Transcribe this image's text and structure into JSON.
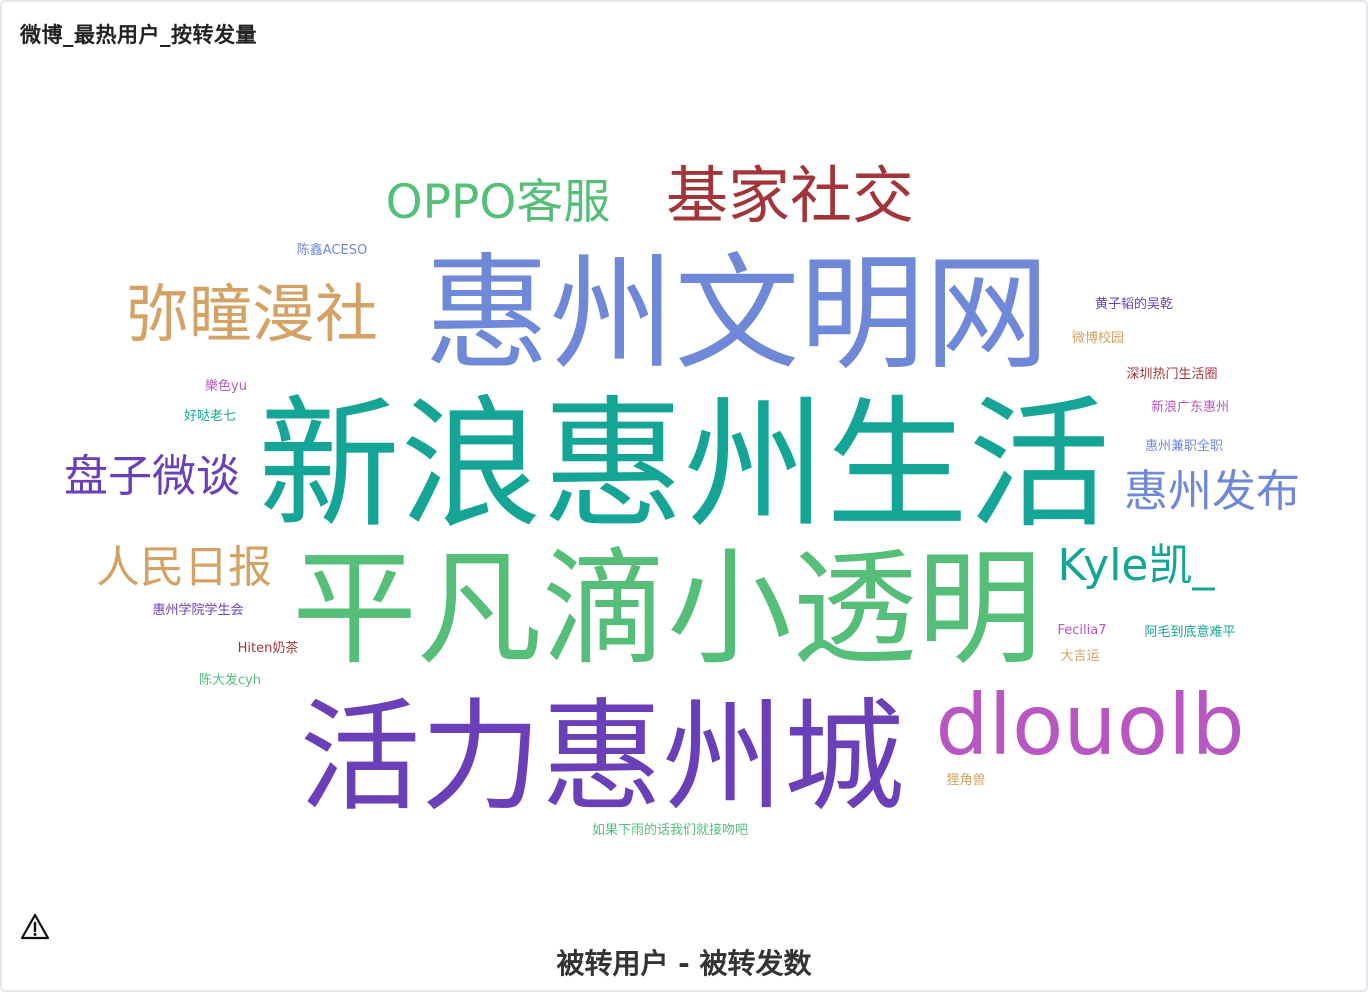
{
  "chart_data": {
    "type": "wordcloud",
    "title": "微博_最热用户_按转发量",
    "xlabel": "被转用户 - 被转发数",
    "words": [
      {
        "text": "新浪惠州生活",
        "weight": 100,
        "color": "#14a596"
      },
      {
        "text": "惠州文明网",
        "weight": 88,
        "color": "#6f88d8"
      },
      {
        "text": "平凡滴小透明",
        "weight": 88,
        "color": "#55bf7a"
      },
      {
        "text": "活力惠州城",
        "weight": 85,
        "color": "#6a3fb8"
      },
      {
        "text": "dlouolb",
        "weight": 62,
        "color": "#b857c1"
      },
      {
        "text": "弥瞳漫社",
        "weight": 46,
        "color": "#d3a264"
      },
      {
        "text": "基家社交",
        "weight": 45,
        "color": "#a3353a"
      },
      {
        "text": "OPPO客服",
        "weight": 34,
        "color": "#55bf7a"
      },
      {
        "text": "盘子微谈",
        "weight": 32,
        "color": "#6a3fb8"
      },
      {
        "text": "惠州发布",
        "weight": 32,
        "color": "#6f88d8"
      },
      {
        "text": "人民日报",
        "weight": 32,
        "color": "#d3a264"
      },
      {
        "text": "Kyle凯_",
        "weight": 32,
        "color": "#14a596"
      },
      {
        "text": "陈鑫ACESO",
        "weight": 10,
        "color": "#6f88d8"
      },
      {
        "text": "黄子韬的吴乾",
        "weight": 10,
        "color": "#6a3fb8"
      },
      {
        "text": "微博校园",
        "weight": 10,
        "color": "#d3a264"
      },
      {
        "text": "樂色yu",
        "weight": 10,
        "color": "#b857c1"
      },
      {
        "text": "好哒老七",
        "weight": 10,
        "color": "#14a596"
      },
      {
        "text": "深圳热门生活圈",
        "weight": 10,
        "color": "#a3353a"
      },
      {
        "text": "新浪广东惠州",
        "weight": 10,
        "color": "#b857c1"
      },
      {
        "text": "惠州兼职全职",
        "weight": 10,
        "color": "#6f88d8"
      },
      {
        "text": "惠州学院学生会",
        "weight": 10,
        "color": "#6a3fb8"
      },
      {
        "text": "Hiten奶茶",
        "weight": 10,
        "color": "#a3353a"
      },
      {
        "text": "陈大发cyh",
        "weight": 10,
        "color": "#55bf7a"
      },
      {
        "text": "Fecilia7",
        "weight": 10,
        "color": "#b857c1"
      },
      {
        "text": "阿毛到底意难平",
        "weight": 10,
        "color": "#14a596"
      },
      {
        "text": "大吉运",
        "weight": 10,
        "color": "#d3a264"
      },
      {
        "text": "狸角兽",
        "weight": 10,
        "color": "#d3a264"
      },
      {
        "text": "如果下雨的话我们就接吻吧",
        "weight": 10,
        "color": "#55bf7a"
      }
    ]
  },
  "warning_icon": "warning-triangle-icon"
}
